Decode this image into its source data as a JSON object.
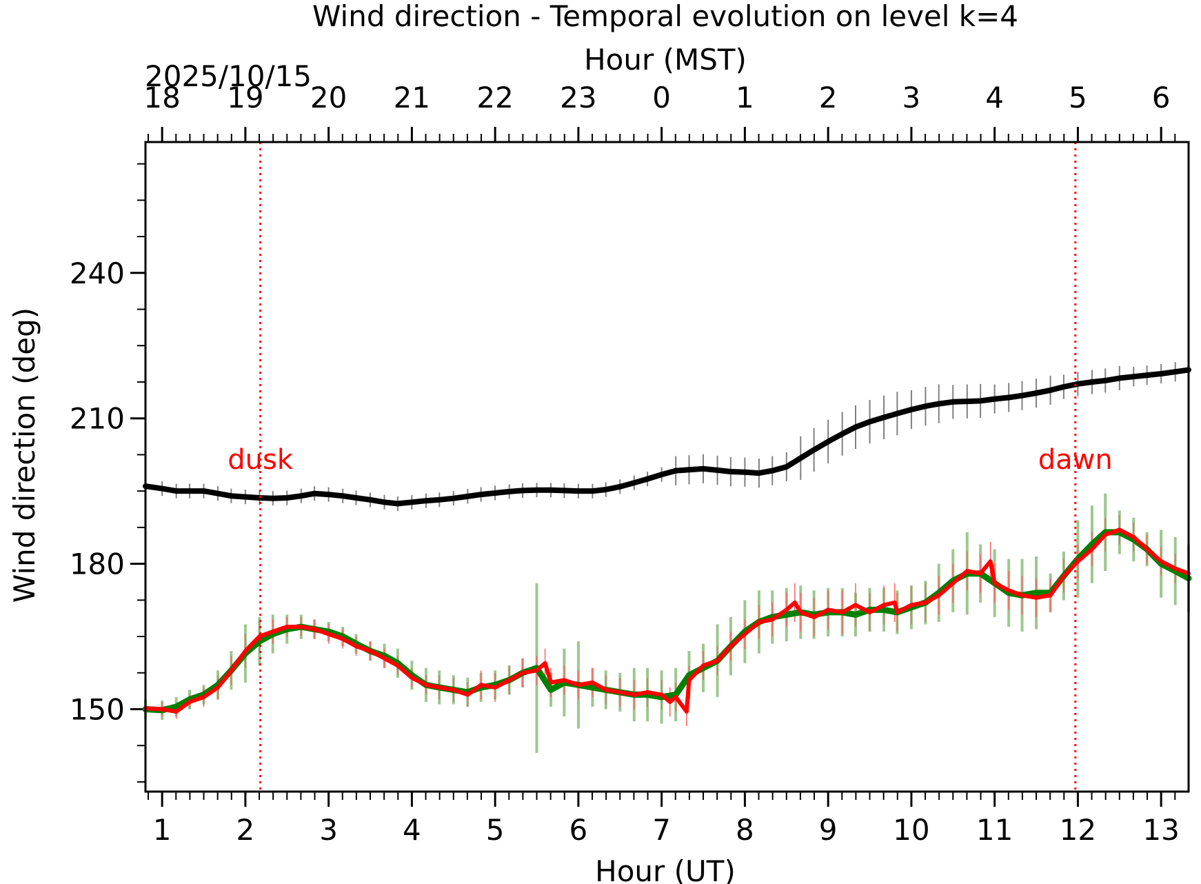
{
  "chart_data": {
    "type": "line",
    "title": "Wind direction - Temporal evolution on level k=4",
    "xlabel": "Hour (UT)",
    "x2label": "Hour (MST)",
    "ylabel": "Wind direction (deg)",
    "date_label": "2025/10/15",
    "xlim": [
      0.8,
      13.33
    ],
    "ylim": [
      133,
      267
    ],
    "x_ticks": [
      1,
      2,
      3,
      4,
      5,
      6,
      7,
      8,
      9,
      10,
      11,
      12,
      13
    ],
    "x_tick_labels": [
      "1",
      "2",
      "3",
      "4",
      "5",
      "6",
      "7",
      "8",
      "9",
      "10",
      "11",
      "12",
      "13"
    ],
    "x2_ticks": [
      1,
      2,
      3,
      4,
      5,
      6,
      7,
      8,
      9,
      10,
      11,
      12,
      13
    ],
    "x2_tick_labels": [
      "18",
      "19",
      "20",
      "21",
      "22",
      "23",
      "0",
      "1",
      "2",
      "3",
      "4",
      "5",
      "6"
    ],
    "y_ticks": [
      150,
      180,
      210,
      240
    ],
    "y_tick_labels": [
      "150",
      "180",
      "210",
      "240"
    ],
    "grid": false,
    "annotations": [
      {
        "text": "dusk",
        "x": 2.18
      },
      {
        "text": "dawn",
        "x": 11.97
      }
    ],
    "colors": {
      "upper_series": "#000000",
      "upper_errbar": "#808080",
      "lower_smooth": "#008000",
      "lower_smooth_errbar": "#9dc78f",
      "lower_raw": "#ff0000",
      "lower_raw_errbar": "#ff6060",
      "markers": "#ff0000"
    },
    "series": [
      {
        "id": "upper",
        "x": [
          0.8,
          1.0,
          1.17,
          1.33,
          1.5,
          1.67,
          1.83,
          2.0,
          2.17,
          2.33,
          2.5,
          2.67,
          2.83,
          3.0,
          3.17,
          3.33,
          3.5,
          3.67,
          3.83,
          4.0,
          4.17,
          4.33,
          4.5,
          4.67,
          4.83,
          5.0,
          5.17,
          5.33,
          5.5,
          5.67,
          5.83,
          6.0,
          6.17,
          6.33,
          6.5,
          6.67,
          6.83,
          7.0,
          7.17,
          7.33,
          7.5,
          7.67,
          7.83,
          8.0,
          8.17,
          8.33,
          8.5,
          8.67,
          8.83,
          9.0,
          9.17,
          9.33,
          9.5,
          9.67,
          9.83,
          10.0,
          10.17,
          10.33,
          10.5,
          10.67,
          10.83,
          11.0,
          11.17,
          11.33,
          11.5,
          11.67,
          11.83,
          12.0,
          12.17,
          12.33,
          12.5,
          12.67,
          12.83,
          13.0,
          13.17,
          13.33
        ],
        "y": [
          196.0,
          195.5,
          195.0,
          195.0,
          195.0,
          194.5,
          194.0,
          193.8,
          193.6,
          193.5,
          193.6,
          194.0,
          194.5,
          194.3,
          194.0,
          193.6,
          193.2,
          192.7,
          192.4,
          192.7,
          193.0,
          193.2,
          193.5,
          193.9,
          194.3,
          194.6,
          194.9,
          195.1,
          195.2,
          195.2,
          195.1,
          195.0,
          195.0,
          195.3,
          195.9,
          196.7,
          197.5,
          198.4,
          199.2,
          199.4,
          199.6,
          199.3,
          199.0,
          198.9,
          198.7,
          199.2,
          200.0,
          201.8,
          203.5,
          205.2,
          206.8,
          208.2,
          209.3,
          210.2,
          211.0,
          211.8,
          212.5,
          213.0,
          213.4,
          213.5,
          213.6,
          214.0,
          214.3,
          214.7,
          215.2,
          215.8,
          216.5,
          217.1,
          217.5,
          217.8,
          218.3,
          218.6,
          218.9,
          219.2,
          219.6,
          220.0
        ],
        "err": [
          2.0,
          1.5,
          1.5,
          1.5,
          1.5,
          1.5,
          1.5,
          1.5,
          1.5,
          1.5,
          1.5,
          1.5,
          1.5,
          1.5,
          1.5,
          1.5,
          1.5,
          1.5,
          1.5,
          1.5,
          1.5,
          1.5,
          1.5,
          1.5,
          1.5,
          1.5,
          1.5,
          1.5,
          1.5,
          1.5,
          1.5,
          1.5,
          1.5,
          1.5,
          1.5,
          1.5,
          1.5,
          1.5,
          3.0,
          3.0,
          3.0,
          3.0,
          3.0,
          3.0,
          3.0,
          3.0,
          3.0,
          4.5,
          4.5,
          4.5,
          4.5,
          4.5,
          4.5,
          4.5,
          4.5,
          4.0,
          4.0,
          4.0,
          3.5,
          3.5,
          3.5,
          3.0,
          3.0,
          3.0,
          3.0,
          3.0,
          2.5,
          2.5,
          2.5,
          2.5,
          2.5,
          2.0,
          2.0,
          2.0,
          2.0,
          2.0
        ]
      },
      {
        "id": "lower-smooth",
        "x": [
          0.8,
          1.0,
          1.17,
          1.33,
          1.5,
          1.67,
          1.83,
          2.0,
          2.17,
          2.33,
          2.5,
          2.67,
          2.83,
          3.0,
          3.17,
          3.33,
          3.5,
          3.67,
          3.83,
          4.0,
          4.17,
          4.33,
          4.5,
          4.67,
          4.83,
          5.0,
          5.17,
          5.33,
          5.5,
          5.67,
          5.83,
          6.0,
          6.17,
          6.33,
          6.5,
          6.67,
          6.83,
          7.0,
          7.17,
          7.33,
          7.5,
          7.67,
          7.83,
          8.0,
          8.17,
          8.33,
          8.5,
          8.67,
          8.83,
          9.0,
          9.17,
          9.33,
          9.5,
          9.67,
          9.83,
          10.0,
          10.17,
          10.33,
          10.5,
          10.67,
          10.83,
          11.0,
          11.17,
          11.33,
          11.5,
          11.67,
          11.83,
          12.0,
          12.17,
          12.33,
          12.5,
          12.67,
          12.83,
          13.0,
          13.17,
          13.33
        ],
        "y": [
          150.0,
          149.8,
          150.5,
          152.0,
          153.0,
          155.0,
          158.0,
          161.5,
          164.0,
          165.5,
          166.5,
          167.0,
          166.5,
          166.0,
          165.0,
          163.5,
          162.0,
          161.0,
          159.5,
          157.0,
          155.0,
          154.5,
          154.0,
          153.5,
          154.5,
          155.0,
          156.0,
          157.5,
          158.5,
          154.0,
          155.5,
          155.0,
          154.5,
          154.0,
          153.5,
          153.0,
          153.0,
          152.5,
          153.0,
          157.0,
          158.5,
          160.0,
          163.0,
          166.0,
          168.0,
          169.0,
          169.5,
          170.0,
          169.5,
          170.0,
          170.0,
          169.5,
          170.5,
          170.5,
          170.0,
          171.0,
          172.0,
          174.0,
          176.5,
          178.0,
          178.0,
          176.0,
          174.0,
          173.5,
          174.0,
          174.0,
          177.5,
          181.0,
          184.0,
          186.5,
          186.5,
          185.0,
          183.0,
          180.0,
          178.5,
          177.0
        ],
        "err": [
          2.0,
          2.0,
          2.0,
          2.0,
          2.0,
          3.0,
          4.0,
          6.0,
          5.0,
          4.0,
          3.0,
          2.5,
          2.0,
          2.0,
          2.0,
          2.0,
          2.0,
          2.5,
          3.0,
          3.0,
          3.5,
          3.5,
          3.0,
          3.0,
          3.0,
          3.0,
          3.0,
          3.0,
          17.5,
          3.5,
          7.0,
          9.0,
          4.0,
          4.0,
          4.0,
          5.5,
          5.5,
          5.5,
          5.5,
          5.0,
          5.0,
          7.5,
          6.0,
          6.5,
          6.5,
          5.5,
          5.5,
          5.5,
          5.0,
          5.0,
          5.0,
          4.5,
          4.5,
          4.5,
          4.5,
          4.5,
          4.5,
          6.0,
          6.5,
          8.5,
          6.0,
          7.0,
          7.0,
          7.5,
          7.5,
          4.0,
          5.0,
          8.0,
          8.0,
          8.0,
          4.5,
          4.5,
          3.5,
          7.0,
          7.0,
          7.0
        ]
      },
      {
        "id": "lower-raw",
        "x": [
          0.8,
          1.0,
          1.17,
          1.33,
          1.5,
          1.67,
          1.83,
          2.0,
          2.17,
          2.33,
          2.5,
          2.67,
          2.83,
          3.0,
          3.17,
          3.33,
          3.5,
          3.67,
          3.83,
          4.0,
          4.17,
          4.33,
          4.5,
          4.67,
          4.83,
          5.0,
          5.17,
          5.33,
          5.5,
          5.6,
          5.67,
          5.83,
          6.0,
          6.17,
          6.33,
          6.5,
          6.67,
          6.83,
          7.0,
          7.1,
          7.17,
          7.3,
          7.33,
          7.5,
          7.67,
          7.83,
          8.0,
          8.17,
          8.33,
          8.5,
          8.6,
          8.67,
          8.83,
          9.0,
          9.17,
          9.33,
          9.5,
          9.67,
          9.8,
          9.83,
          10.0,
          10.17,
          10.33,
          10.5,
          10.67,
          10.83,
          10.95,
          11.0,
          11.17,
          11.33,
          11.5,
          11.67,
          11.83,
          12.0,
          12.17,
          12.33,
          12.5,
          12.67,
          12.83,
          13.0,
          13.17,
          13.33
        ],
        "y": [
          150.2,
          150.0,
          149.5,
          151.5,
          152.5,
          154.5,
          158.0,
          162.0,
          165.0,
          166.0,
          167.0,
          167.0,
          166.5,
          165.5,
          164.5,
          163.0,
          162.0,
          160.5,
          159.0,
          156.5,
          155.0,
          154.5,
          154.0,
          153.0,
          155.0,
          154.5,
          156.0,
          157.5,
          158.0,
          159.5,
          155.5,
          156.0,
          155.0,
          155.5,
          154.0,
          153.5,
          153.0,
          153.5,
          153.0,
          151.5,
          152.5,
          149.5,
          156.0,
          159.0,
          160.0,
          163.0,
          165.5,
          168.0,
          168.5,
          170.5,
          172.0,
          170.0,
          169.0,
          170.5,
          170.0,
          171.5,
          170.0,
          171.5,
          172.0,
          170.0,
          171.5,
          172.0,
          173.5,
          176.0,
          178.5,
          178.0,
          180.5,
          176.0,
          174.5,
          173.5,
          173.0,
          173.5,
          177.5,
          180.5,
          183.0,
          186.0,
          187.0,
          185.5,
          183.0,
          180.5,
          179.0,
          178.0
        ],
        "err": [
          1.5,
          1.5,
          1.5,
          1.5,
          2.0,
          2.5,
          3.0,
          3.5,
          3.0,
          2.5,
          2.0,
          2.0,
          2.0,
          2.0,
          2.0,
          2.0,
          2.0,
          2.0,
          2.0,
          2.0,
          2.0,
          2.5,
          2.5,
          2.5,
          3.0,
          3.0,
          3.0,
          3.0,
          3.0,
          3.0,
          3.0,
          3.0,
          3.0,
          3.0,
          3.0,
          3.0,
          3.0,
          3.0,
          3.0,
          3.0,
          3.0,
          3.0,
          3.0,
          3.0,
          3.0,
          3.0,
          3.0,
          3.5,
          3.5,
          3.5,
          4.0,
          4.0,
          4.0,
          4.0,
          4.5,
          4.5,
          4.0,
          4.0,
          4.0,
          4.0,
          4.0,
          4.0,
          4.0,
          4.0,
          4.0,
          4.0,
          4.0,
          4.0,
          4.0,
          4.0,
          4.0,
          3.5,
          3.5,
          3.5,
          3.5,
          3.5,
          3.0,
          3.0,
          3.0,
          3.0,
          3.0,
          3.0
        ]
      }
    ]
  }
}
